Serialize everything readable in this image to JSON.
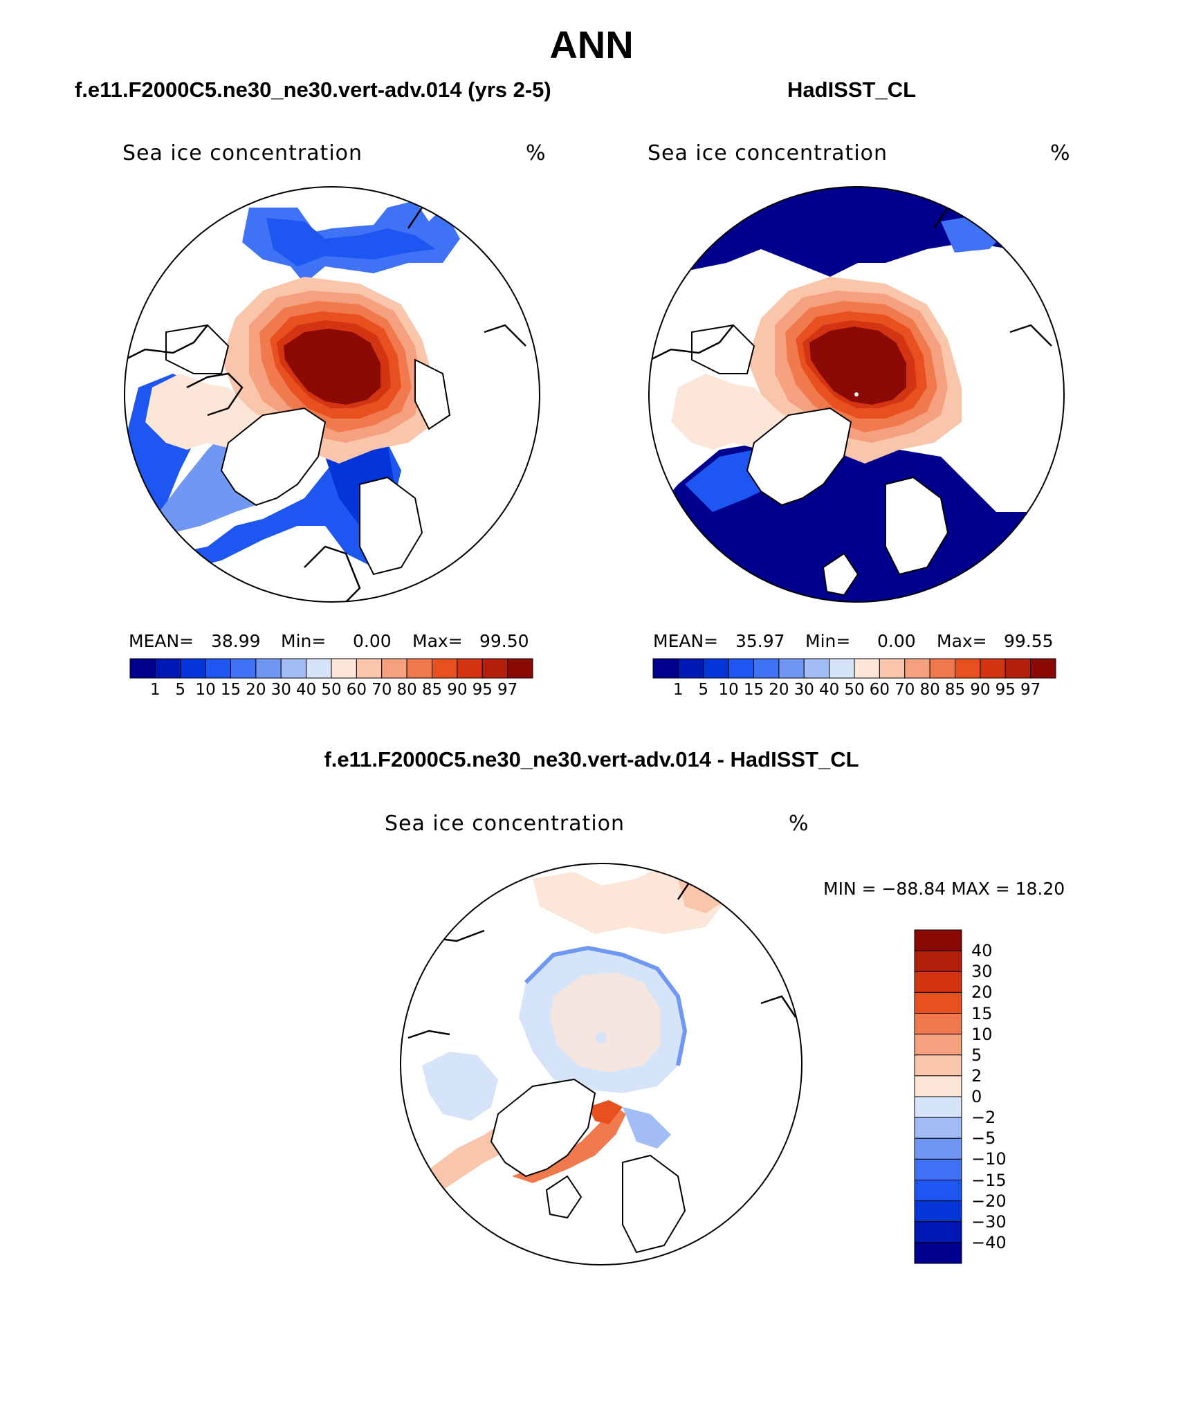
{
  "figure_title": "ANN",
  "panels": [
    {
      "title": "f.e11.F2000C5.ne30_ne30.vert-adv.014 (yrs 2-5)",
      "variable": "Sea ice concentration",
      "units": "%",
      "stats": {
        "mean_label": "MEAN=",
        "mean": "38.99",
        "min_label": "Min=",
        "min": "0.00",
        "max_label": "Max=",
        "max": "99.50"
      }
    },
    {
      "title": "HadISST_CL",
      "variable": "Sea ice concentration",
      "units": "%",
      "stats": {
        "mean_label": "MEAN=",
        "mean": "35.97",
        "min_label": "Min=",
        "min": "0.00",
        "max_label": "Max=",
        "max": "99.55"
      }
    },
    {
      "title": "f.e11.F2000C5.ne30_ne30.vert-adv.014 - HadISST_CL",
      "variable": "Sea ice concentration",
      "units": "%",
      "stats": {
        "text": "MIN = −88.84 MAX =   18.20"
      }
    }
  ],
  "legend_field": {
    "levels": [
      "1",
      "5",
      "10",
      "15",
      "20",
      "30",
      "40",
      "50",
      "60",
      "70",
      "80",
      "85",
      "90",
      "95",
      "97"
    ],
    "colors": [
      "#00008f",
      "#0019b4",
      "#0435d9",
      "#1e56f1",
      "#3f72f4",
      "#7097f2",
      "#a2bcf5",
      "#d6e4fa",
      "#fbe6d8",
      "#f9c6ab",
      "#f5a07e",
      "#f07a4e",
      "#e9501f",
      "#d33513",
      "#b41f0c",
      "#8c0a05"
    ]
  },
  "legend_diff": {
    "levels": [
      "40",
      "30",
      "20",
      "15",
      "10",
      "5",
      "2",
      "0",
      "−2",
      "−5",
      "−10",
      "−15",
      "−20",
      "−30",
      "−40"
    ],
    "colors": [
      "#8c0a05",
      "#b41f0c",
      "#d33513",
      "#e9501f",
      "#f07a4e",
      "#f5a07e",
      "#f9c6ab",
      "#fbe6d8",
      "#d6e4fa",
      "#a2bcf5",
      "#7097f2",
      "#3f72f4",
      "#1e56f1",
      "#0435d9",
      "#0019b4",
      "#00008f"
    ]
  }
}
